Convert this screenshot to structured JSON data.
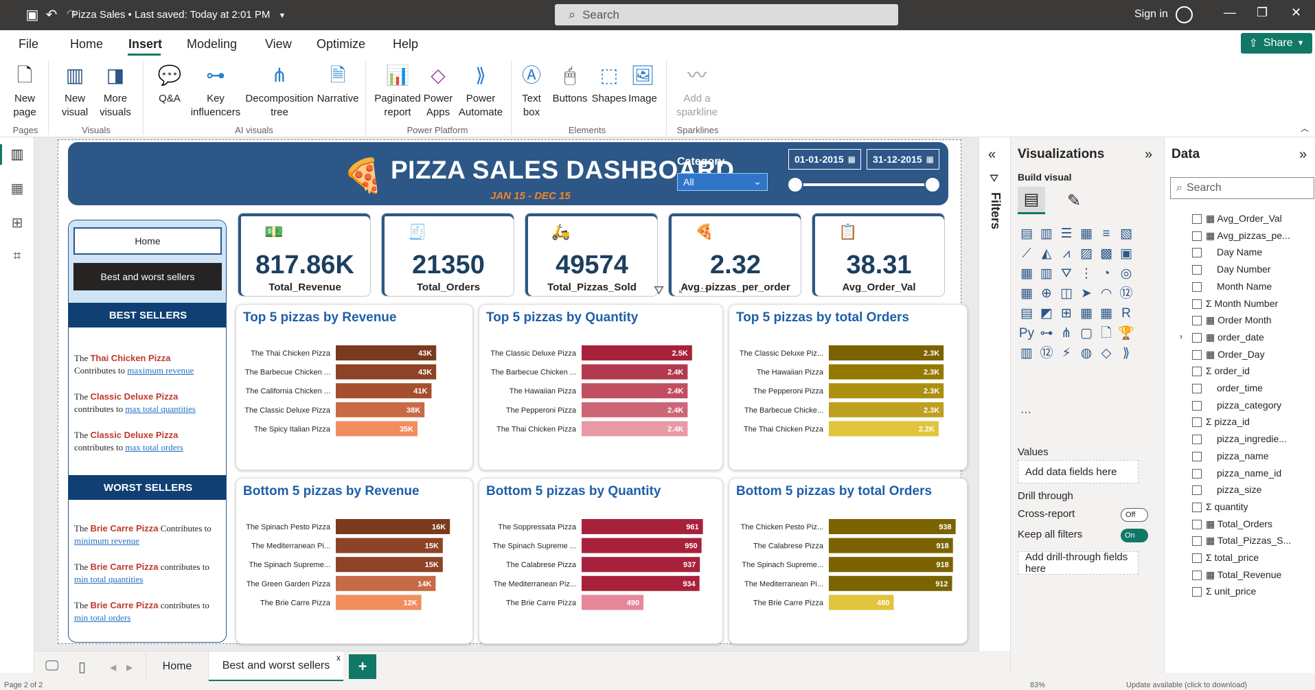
{
  "window": {
    "doc_title": "Pizza Sales",
    "saved_status": "Last saved: Today at 2:01 PM",
    "search_placeholder": "Search",
    "sign_in": "Sign in"
  },
  "menu": {
    "items": [
      "File",
      "Home",
      "Insert",
      "Modeling",
      "View",
      "Optimize",
      "Help"
    ],
    "active": "Insert",
    "share_label": "Share"
  },
  "ribbon": {
    "buttons": {
      "new_page": "New page",
      "new_visual": "New visual",
      "more_visuals": "More visuals",
      "qa": "Q&A",
      "key_influencers": "Key influencers",
      "decomposition_tree": "Decomposition tree",
      "narrative": "Narrative",
      "paginated_report": "Paginated report",
      "power_apps": "Power Apps",
      "power_automate": "Power Automate",
      "text_box": "Text box",
      "buttons": "Buttons",
      "shapes": "Shapes",
      "image": "Image",
      "add_sparkline": "Add a sparkline"
    },
    "groups": {
      "pages": "Pages",
      "visuals": "Visuals",
      "ai_visuals": "AI visuals",
      "power_platform": "Power Platform",
      "elements": "Elements",
      "sparklines": "Sparklines"
    }
  },
  "dashboard": {
    "title": "PIZZA SALES DASHBOARD",
    "subtitle": "JAN 15 - DEC 15",
    "category_label": "Category",
    "category_value": "All",
    "date_start": "01-01-2015",
    "date_end": "31-12-2015",
    "nav": {
      "home": "Home",
      "best_worst": "Best and worst sellers"
    },
    "best_sellers": {
      "heading": "BEST SELLERS",
      "notes": [
        {
          "pre": "The ",
          "pizza": "Thai Chicken Pizza",
          "mid": "Contributes to ",
          "link": "maximum revenue"
        },
        {
          "pre": "The ",
          "pizza": "Classic Deluxe Pizza",
          "mid": "contributes to ",
          "link": "max total quantities"
        },
        {
          "pre": "The ",
          "pizza": "Classic Deluxe Pizza",
          "mid": "contributes to ",
          "link": "max total orders"
        }
      ]
    },
    "worst_sellers": {
      "heading": "WORST SELLERS",
      "notes": [
        {
          "pre": "The ",
          "pizza": "Brie Carre Pizza",
          "mid": " Contributes to ",
          "link": "minimum revenue"
        },
        {
          "pre": "The ",
          "pizza": "Brie Carre Pizza",
          "mid": " contributes to ",
          "link": "min total quantities"
        },
        {
          "pre": "The ",
          "pizza": "Brie Carre Pizza",
          "mid": " contributes to ",
          "link": "min total orders"
        }
      ]
    },
    "kpis": [
      {
        "value": "817.86K",
        "label": "Total_Revenue"
      },
      {
        "value": "21350",
        "label": "Total_Orders"
      },
      {
        "value": "49574",
        "label": "Total_Pizzas_Sold"
      },
      {
        "value": "2.32",
        "label": "Avg_pizzas_per_order"
      },
      {
        "value": "38.31",
        "label": "Avg_Order_Val"
      }
    ]
  },
  "chart_data": [
    {
      "type": "bar",
      "title": "Top 5 pizzas by Revenue",
      "categories": [
        "The Thai Chicken Pizza",
        "The Barbecue Chicken ...",
        "The California Chicken ...",
        "The Classic Deluxe Pizza",
        "The Spicy Italian Pizza"
      ],
      "values": [
        43,
        43,
        41,
        38,
        35
      ],
      "labels": [
        "43K",
        "43K",
        "41K",
        "38K",
        "35K"
      ],
      "colors": [
        "#7a3a1e",
        "#8e4226",
        "#a54f2f",
        "#c86a45",
        "#f28d5e"
      ],
      "xlim": [
        0,
        55
      ]
    },
    {
      "type": "bar",
      "title": "Top 5 pizzas by Quantity",
      "categories": [
        "The Classic Deluxe Pizza",
        "The Barbecue Chicken ...",
        "The Hawaiian Pizza",
        "The Pepperoni Pizza",
        "The Thai Chicken Pizza"
      ],
      "values": [
        2.5,
        2.4,
        2.4,
        2.4,
        2.4
      ],
      "labels": [
        "2.5K",
        "2.4K",
        "2.4K",
        "2.4K",
        "2.4K"
      ],
      "colors": [
        "#a8213b",
        "#b33a4e",
        "#c04f61",
        "#cc6677",
        "#e89aa6"
      ],
      "xlim": [
        0,
        3
      ]
    },
    {
      "type": "bar",
      "title": "Top 5 pizzas by total Orders",
      "categories": [
        "The Classic Deluxe Piz...",
        "The Hawaiian Pizza",
        "The Pepperoni Pizza",
        "The Barbecue Chicke...",
        "The Thai Chicken Pizza"
      ],
      "values": [
        2.3,
        2.3,
        2.3,
        2.3,
        2.2
      ],
      "labels": [
        "2.3K",
        "2.3K",
        "2.3K",
        "2.3K",
        "2.2K"
      ],
      "colors": [
        "#7a6300",
        "#947900",
        "#ab8f10",
        "#bf9f20",
        "#e0c43a"
      ],
      "xlim": [
        0,
        2.6
      ]
    },
    {
      "type": "bar",
      "title": "Bottom 5 pizzas by Revenue",
      "categories": [
        "The Spinach Pesto Pizza",
        "The Mediterranean Pi...",
        "The Spinach Supreme...",
        "The Green Garden Pizza",
        "The Brie Carre Pizza"
      ],
      "values": [
        16,
        15,
        15,
        14,
        12
      ],
      "labels": [
        "16K",
        "15K",
        "15K",
        "14K",
        "12K"
      ],
      "colors": [
        "#7a3a1e",
        "#8e4226",
        "#8e4226",
        "#c86a45",
        "#f28d5e"
      ],
      "xlim": [
        0,
        18
      ]
    },
    {
      "type": "bar",
      "title": "Bottom 5 pizzas by Quantity",
      "categories": [
        "The Soppressata Pizza",
        "The Spinach Supreme ...",
        "The Calabrese Pizza",
        "The Mediterranean Piz...",
        "The Brie Carre Pizza"
      ],
      "values": [
        961,
        950,
        937,
        934,
        490
      ],
      "labels": [
        "961",
        "950",
        "937",
        "934",
        "490"
      ],
      "colors": [
        "#a8213b",
        "#a8213b",
        "#a8213b",
        "#a8213b",
        "#e8869a"
      ],
      "xlim": [
        0,
        1050
      ]
    },
    {
      "type": "bar",
      "title": "Bottom 5 pizzas by total Orders",
      "categories": [
        "The Chicken Pesto Piz...",
        "The Calabrese Pizza",
        "The Spinach Supreme...",
        "The Mediterranean Pi...",
        "The Brie Carre Pizza"
      ],
      "values": [
        938,
        918,
        918,
        912,
        480
      ],
      "labels": [
        "938",
        "918",
        "918",
        "912",
        "480"
      ],
      "colors": [
        "#7a6300",
        "#7a6300",
        "#7a6300",
        "#7a6300",
        "#e0c43a"
      ],
      "xlim": [
        0,
        960
      ]
    }
  ],
  "panes": {
    "filters_label": "Filters",
    "viz_title": "Visualizations",
    "build_visual": "Build visual",
    "values_label": "Values",
    "add_data_fields": "Add data fields here",
    "drill_through": "Drill through",
    "cross_report": "Cross-report",
    "cross_report_state": "Off",
    "keep_all_filters": "Keep all filters",
    "keep_all_filters_state": "On",
    "add_drill_fields": "Add drill-through fields here",
    "data_title": "Data",
    "data_search": "Search",
    "fields": [
      {
        "name": "Avg_Order_Val",
        "kind": "calc"
      },
      {
        "name": "Avg_pizzas_pe...",
        "kind": "calc"
      },
      {
        "name": "Day Name",
        "kind": ""
      },
      {
        "name": "Day Number",
        "kind": ""
      },
      {
        "name": "Month Name",
        "kind": ""
      },
      {
        "name": "Month Number",
        "kind": "sum"
      },
      {
        "name": "Order Month",
        "kind": "calc-fx"
      },
      {
        "name": "order_date",
        "kind": "calc"
      },
      {
        "name": "Order_Day",
        "kind": "calc-fx"
      },
      {
        "name": "order_id",
        "kind": "sum"
      },
      {
        "name": "order_time",
        "kind": ""
      },
      {
        "name": "pizza_category",
        "kind": ""
      },
      {
        "name": "pizza_id",
        "kind": "sum"
      },
      {
        "name": "pizza_ingredie...",
        "kind": ""
      },
      {
        "name": "pizza_name",
        "kind": ""
      },
      {
        "name": "pizza_name_id",
        "kind": ""
      },
      {
        "name": "pizza_size",
        "kind": ""
      },
      {
        "name": "quantity",
        "kind": "sum"
      },
      {
        "name": "Total_Orders",
        "kind": "calc"
      },
      {
        "name": "Total_Pizzas_S...",
        "kind": "calc"
      },
      {
        "name": "total_price",
        "kind": "sum"
      },
      {
        "name": "Total_Revenue",
        "kind": "calc"
      },
      {
        "name": "unit_price",
        "kind": "sum"
      }
    ]
  },
  "page_tabs": {
    "home": "Home",
    "best_worst": "Best and worst sellers",
    "close": "x",
    "add": "+"
  },
  "status": {
    "page": "Page 2 of 2",
    "zoom": "83%",
    "update": "Update available (click to download)"
  }
}
